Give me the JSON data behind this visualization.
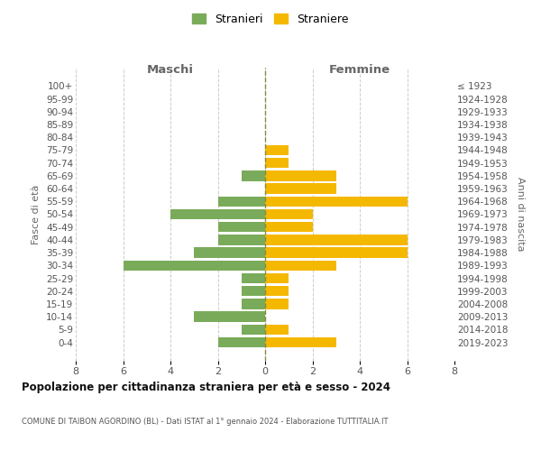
{
  "age_groups_display": [
    "100+",
    "95-99",
    "90-94",
    "85-89",
    "80-84",
    "75-79",
    "70-74",
    "65-69",
    "60-64",
    "55-59",
    "50-54",
    "45-49",
    "40-44",
    "35-39",
    "30-34",
    "25-29",
    "20-24",
    "15-19",
    "10-14",
    "5-9",
    "0-4"
  ],
  "birth_years_display": [
    "≤ 1923",
    "1924-1928",
    "1929-1933",
    "1934-1938",
    "1939-1943",
    "1944-1948",
    "1949-1953",
    "1954-1958",
    "1959-1963",
    "1964-1968",
    "1969-1973",
    "1974-1978",
    "1979-1983",
    "1984-1988",
    "1989-1993",
    "1994-1998",
    "1999-2003",
    "2004-2008",
    "2009-2013",
    "2014-2018",
    "2019-2023"
  ],
  "males": [
    0,
    0,
    0,
    0,
    0,
    0,
    0,
    1,
    0,
    2,
    4,
    2,
    2,
    3,
    6,
    1,
    1,
    1,
    3,
    1,
    2
  ],
  "females": [
    0,
    0,
    0,
    0,
    0,
    1,
    1,
    3,
    3,
    6,
    2,
    2,
    6,
    6,
    3,
    1,
    1,
    1,
    0,
    1,
    3
  ],
  "male_color": "#7aab5a",
  "female_color": "#f5b800",
  "bg_color": "#ffffff",
  "grid_color": "#cccccc",
  "title": "Popolazione per cittadinanza straniera per età e sesso - 2024",
  "subtitle": "COMUNE DI TAIBON AGORDINO (BL) - Dati ISTAT al 1° gennaio 2024 - Elaborazione TUTTITALIA.IT",
  "xlabel_left": "Maschi",
  "xlabel_right": "Femmine",
  "ylabel_left": "Fasce di età",
  "ylabel_right": "Anni di nascita",
  "legend_male": "Stranieri",
  "legend_female": "Straniere",
  "xlim": 8,
  "bar_height": 0.8
}
